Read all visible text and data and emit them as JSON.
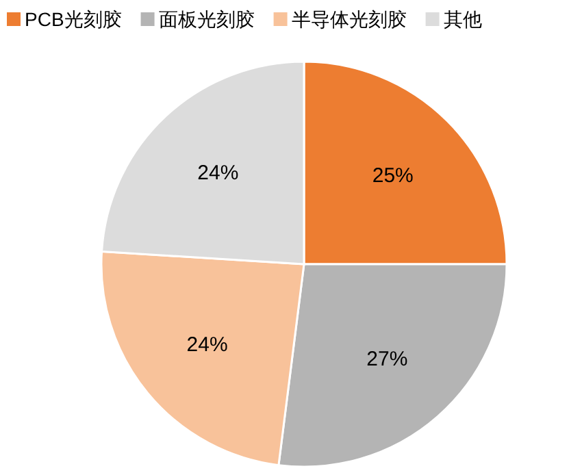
{
  "chart_data": {
    "type": "pie",
    "categories": [
      "PCB光刻胶",
      "面板光刻胶",
      "半导体光刻胶",
      "其他"
    ],
    "values": [
      25,
      27,
      24,
      24
    ],
    "colors": [
      "#ed7d31",
      "#b4b4b4",
      "#f8c29a",
      "#dcdcdc"
    ],
    "value_labels": [
      "25%",
      "27%",
      "24%",
      "24%"
    ],
    "legend": "top"
  }
}
